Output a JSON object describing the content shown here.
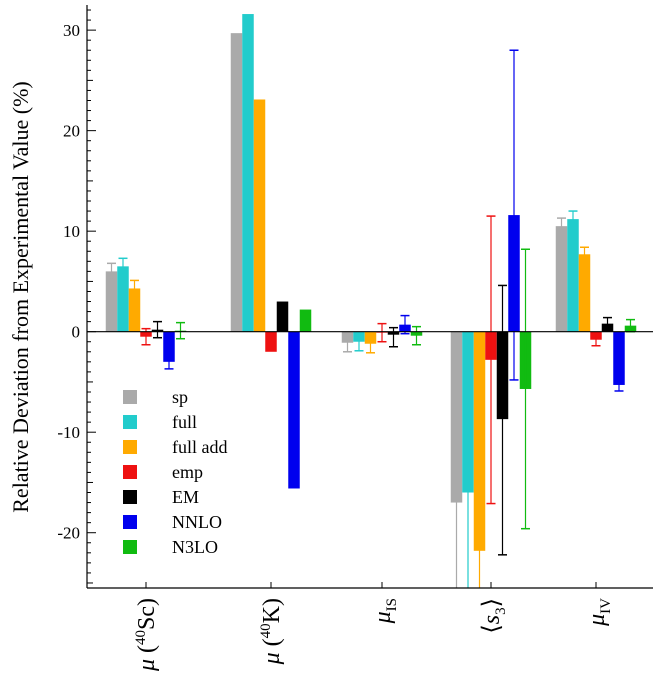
{
  "chart_data": {
    "type": "bar",
    "ylabel": "Relative Deviation from Experimental Value (%)",
    "ylim": [
      -25.5,
      32.5
    ],
    "yticks": [
      -20,
      -10,
      0,
      10,
      20,
      30
    ],
    "categories": [
      {
        "pre": "μ (",
        "sup": "40",
        "main": "Sc",
        "post": ")"
      },
      {
        "pre": "μ (",
        "sup": "40",
        "main": "K",
        "post": ")"
      },
      {
        "pre": "μ",
        "sub": "IS"
      },
      {
        "pre": "⟨",
        "it": "s",
        "sub": "3",
        "post": "⟩"
      },
      {
        "pre": "μ",
        "sub": "IV"
      }
    ],
    "legend_position": "lower-left",
    "series": [
      {
        "name": "sp",
        "color": "#aaaaaa",
        "values": [
          6.0,
          29.7,
          -1.1,
          -17.0,
          10.5
        ],
        "err_low": [
          0.8,
          null,
          0.9,
          9.0,
          0.8
        ],
        "err_high": [
          0.8,
          null,
          0.9,
          9.0,
          0.8
        ]
      },
      {
        "name": "full",
        "color": "#22cccc",
        "values": [
          6.5,
          31.6,
          -1.0,
          -16.0,
          11.2
        ],
        "err_low": [
          0.8,
          null,
          0.9,
          10.0,
          0.8
        ],
        "err_high": [
          0.8,
          null,
          0.9,
          10.0,
          0.8
        ]
      },
      {
        "name": "full add",
        "color": "#ffaa00",
        "values": [
          4.3,
          23.1,
          -1.2,
          -21.8,
          7.7
        ],
        "err_low": [
          0.8,
          null,
          0.9,
          4.0,
          0.7
        ],
        "err_high": [
          0.8,
          null,
          0.9,
          4.0,
          0.7
        ]
      },
      {
        "name": "emp",
        "color": "#ee1111",
        "values": [
          -0.5,
          -2.0,
          -0.1,
          -2.8,
          -0.8
        ],
        "err_low": [
          0.8,
          null,
          0.9,
          14.3,
          0.6
        ],
        "err_high": [
          0.8,
          null,
          0.9,
          14.3,
          0.6
        ]
      },
      {
        "name": "EM",
        "color": "#000000",
        "values": [
          0.2,
          3.0,
          -0.3,
          -8.7,
          0.8
        ],
        "err_low": [
          0.8,
          null,
          1.2,
          13.5,
          0.6
        ],
        "err_high": [
          0.8,
          null,
          0.7,
          13.3,
          0.6
        ]
      },
      {
        "name": "NNLO",
        "color": "#0000ee",
        "values": [
          -3.0,
          -15.6,
          0.7,
          11.6,
          -5.3
        ],
        "err_low": [
          0.7,
          null,
          0.9,
          16.4,
          0.6
        ],
        "err_high": [
          0.7,
          null,
          0.9,
          16.4,
          0.6
        ]
      },
      {
        "name": "N3LO",
        "color": "#11bb11",
        "values": [
          0.1,
          2.2,
          -0.4,
          -5.7,
          0.6
        ],
        "err_low": [
          0.8,
          null,
          0.9,
          13.9,
          0.6
        ],
        "err_high": [
          0.8,
          null,
          0.9,
          13.9,
          0.6
        ]
      }
    ]
  }
}
